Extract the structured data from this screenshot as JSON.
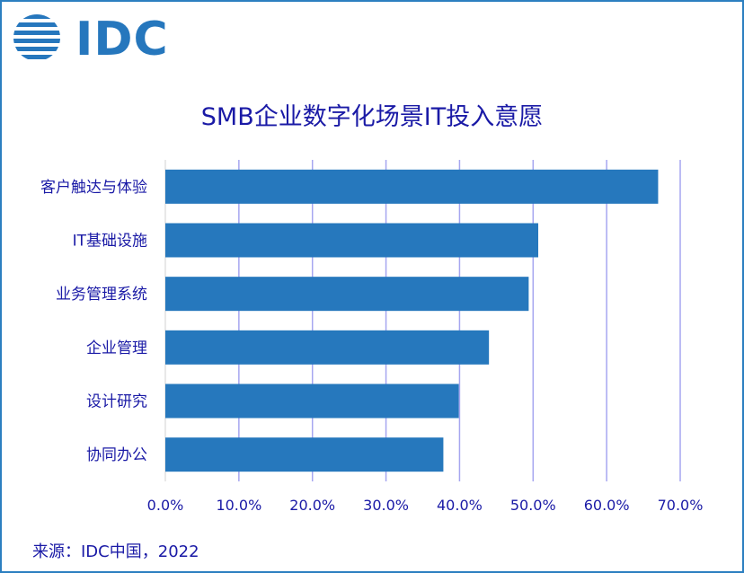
{
  "brand": {
    "logo_text": "IDC"
  },
  "source": "来源：IDC中国，2022",
  "chart_data": {
    "type": "bar",
    "orientation": "horizontal",
    "title": "SMB企业数字化场景IT投入意愿",
    "categories": [
      "客户触达与体验",
      "IT基础设施",
      "业务管理系统",
      "企业管理",
      "设计研究",
      "协同办公"
    ],
    "values": [
      0.67,
      0.507,
      0.494,
      0.44,
      0.399,
      0.378
    ],
    "x_ticks": [
      "0.0%",
      "10.0%",
      "20.0%",
      "30.0%",
      "40.0%",
      "50.0%",
      "60.0%",
      "70.0%"
    ],
    "xlim": [
      0,
      0.7
    ],
    "grid": "vertical",
    "bar_color": "#2678bd",
    "grid_color": "#a6a6f0",
    "text_color": "#1a1aa6"
  }
}
